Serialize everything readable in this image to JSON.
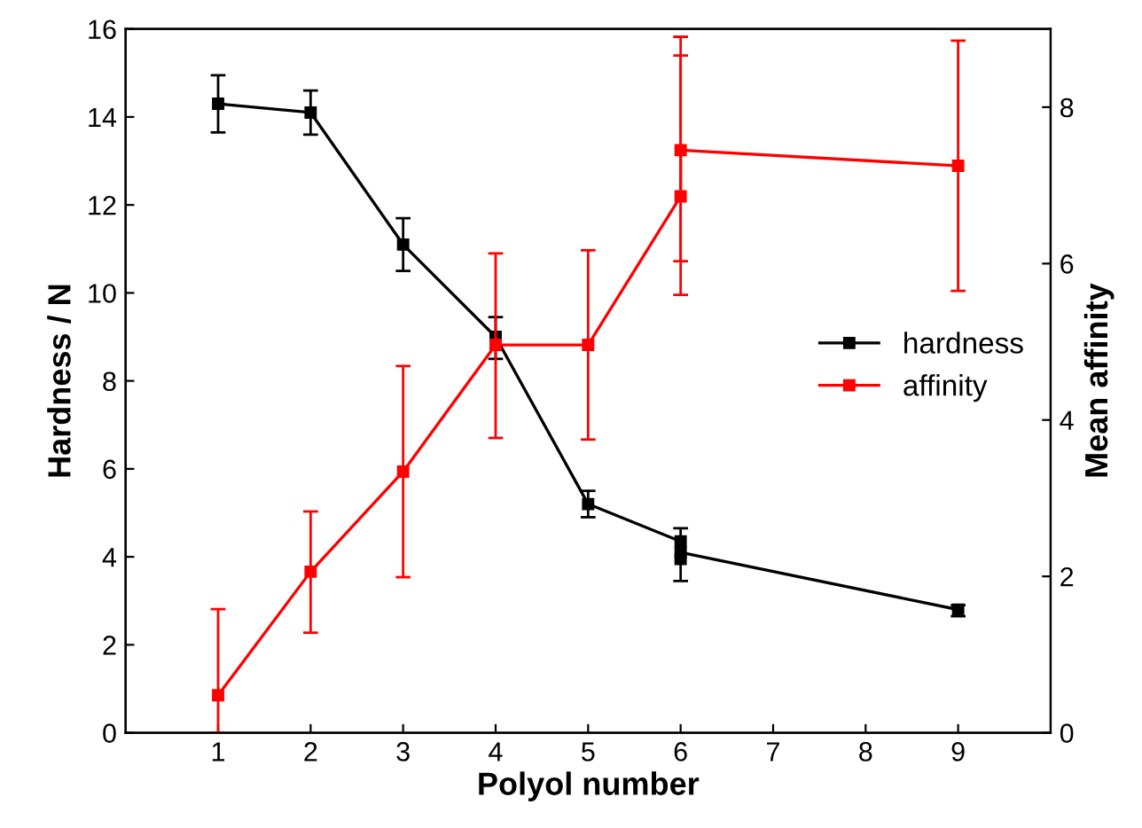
{
  "chart_data": {
    "type": "line",
    "xlabel": "Polyol number",
    "ylabel": "Hardness / N",
    "y2label": "Mean affinity",
    "xlim": [
      0,
      10
    ],
    "xticks": [
      1,
      2,
      3,
      4,
      5,
      6,
      7,
      8,
      9
    ],
    "ylim": [
      0,
      16
    ],
    "yticks": [
      0,
      2,
      4,
      6,
      8,
      10,
      12,
      14,
      16
    ],
    "y2lim": [
      0,
      9
    ],
    "y2ticks": [
      0,
      2,
      4,
      6,
      8
    ],
    "marker": "square",
    "legend": "right",
    "grid": false,
    "series": [
      {
        "name": "hardness",
        "color": "#000000",
        "x": [
          1,
          2,
          3,
          4,
          5,
          6,
          6,
          6,
          9
        ],
        "values": [
          14.3,
          14.1,
          11.1,
          9.0,
          5.2,
          4.35,
          3.95,
          4.1,
          2.8
        ],
        "errors": [
          [
            13.65,
            14.95
          ],
          [
            13.6,
            14.6
          ],
          [
            10.5,
            11.7
          ],
          [
            8.5,
            9.45
          ],
          [
            4.9,
            5.5
          ],
          null,
          null,
          [
            3.45,
            4.65
          ],
          [
            2.65,
            2.9
          ]
        ]
      },
      {
        "name": "affinity",
        "color": "#ff0000",
        "axis": "y2",
        "x": [
          1,
          2,
          3,
          4,
          5,
          6,
          6,
          9
        ],
        "values": [
          0.48,
          2.06,
          3.34,
          4.96,
          4.96,
          6.86,
          7.45,
          7.25
        ],
        "errors": [
          [
            0,
            1.58
          ],
          [
            1.28,
            2.83
          ],
          [
            1.99,
            4.69
          ],
          [
            3.77,
            6.13
          ],
          [
            3.75,
            6.17
          ],
          [
            5.6,
            8.66
          ],
          [
            6.03,
            8.9
          ],
          [
            5.65,
            8.85
          ]
        ]
      }
    ]
  }
}
